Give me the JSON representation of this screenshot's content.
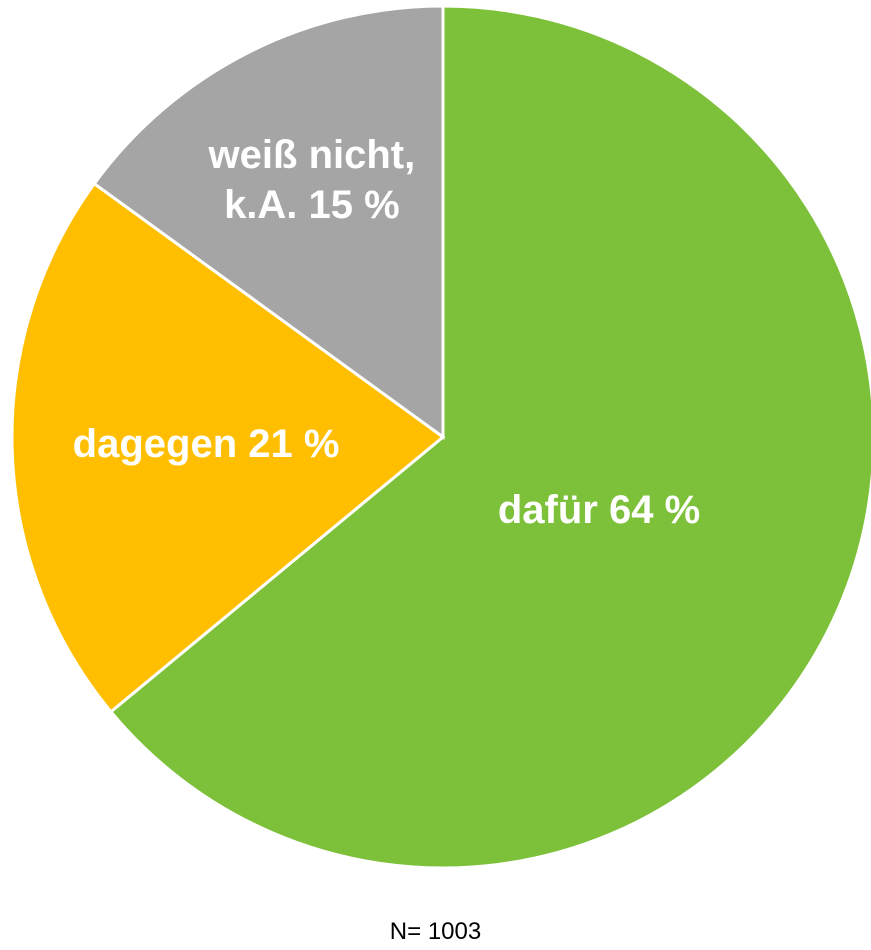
{
  "chart_data": {
    "type": "pie",
    "categories": [
      "dafür",
      "dagegen",
      "weiß nicht, k.A."
    ],
    "values": [
      64,
      21,
      15
    ],
    "value_labels": [
      "64 %",
      "21 %",
      "15 %"
    ],
    "colors": [
      "#7dc03a",
      "#ffbf00",
      "#a5a5a5"
    ],
    "note": "N= 1003"
  }
}
